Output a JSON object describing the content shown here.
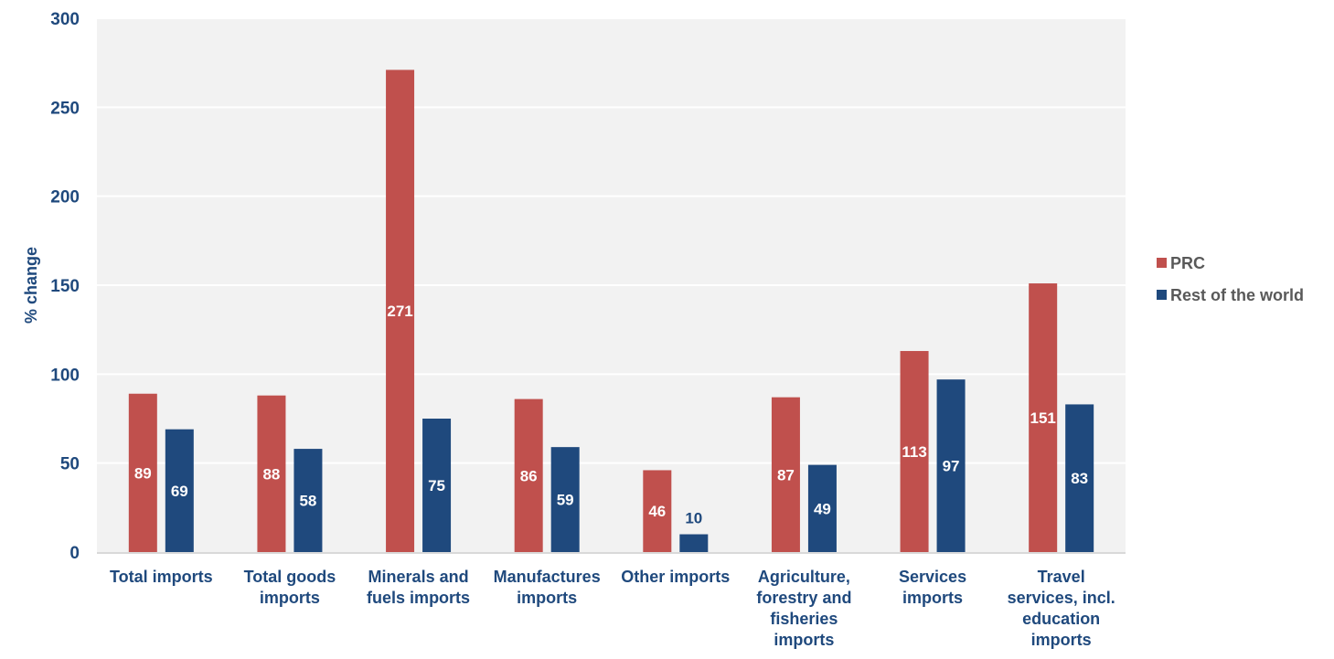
{
  "chart_data": {
    "type": "bar",
    "title": "",
    "xlabel": "",
    "ylabel": "% change",
    "ylim": [
      0,
      300
    ],
    "yticks": [
      "0",
      "50",
      "100",
      "150",
      "200",
      "250",
      "300"
    ],
    "grid": true,
    "legend_position": "right",
    "categories": [
      [
        "Total imports"
      ],
      [
        "Total goods",
        "imports"
      ],
      [
        "Minerals and",
        "fuels imports"
      ],
      [
        "Manufactures",
        "imports"
      ],
      [
        "Other imports"
      ],
      [
        "Agriculture,",
        "forestry and",
        "fisheries",
        "imports"
      ],
      [
        "Services",
        "imports"
      ],
      [
        "Travel",
        "services, incl.",
        "education",
        "imports"
      ]
    ],
    "series": [
      {
        "name": "PRC",
        "color": "#c0504d",
        "values": [
          89,
          88,
          271,
          86,
          46,
          87,
          113,
          151
        ],
        "labels": [
          "89",
          "88",
          "271",
          "86",
          "46",
          "87",
          "113",
          "151"
        ]
      },
      {
        "name": "Rest of the world",
        "color": "#1f497d",
        "values": [
          69,
          58,
          75,
          59,
          10,
          49,
          97,
          83
        ],
        "labels": [
          "69",
          "58",
          "75",
          "59",
          "10",
          "49",
          "97",
          "83"
        ]
      }
    ]
  }
}
